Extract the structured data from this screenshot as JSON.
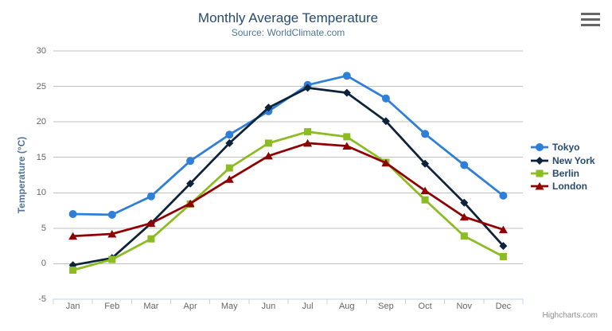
{
  "chart": {
    "title": "Monthly Average Temperature",
    "subtitle": "Source: WorldClimate.com",
    "y_axis_title": "Temperature (°C)",
    "credits": "Highcharts.com",
    "menu_icon": "hamburger-icon"
  },
  "chart_data": {
    "type": "line",
    "title": "Monthly Average Temperature",
    "subtitle": "Source: WorldClimate.com",
    "xlabel": "",
    "ylabel": "Temperature (°C)",
    "categories": [
      "Jan",
      "Feb",
      "Mar",
      "Apr",
      "May",
      "Jun",
      "Jul",
      "Aug",
      "Sep",
      "Oct",
      "Nov",
      "Dec"
    ],
    "ylim": [
      -5,
      30
    ],
    "y_ticks": [
      30,
      25,
      20,
      15,
      10,
      5,
      0,
      -5
    ],
    "grid": true,
    "legend_position": "right",
    "colors": {
      "grid": "#C0C0C0",
      "axis_line": "#C0D0E0",
      "title_text": "#274b6d",
      "subtitle_text": "#4d759e",
      "axis_label_text": "#666666",
      "credits_text": "#909090"
    },
    "series": [
      {
        "name": "Tokyo",
        "color": "#2f7ed8",
        "marker": "circle",
        "values": [
          7.0,
          6.9,
          9.5,
          14.5,
          18.2,
          21.5,
          25.2,
          26.5,
          23.3,
          18.3,
          13.9,
          9.6
        ]
      },
      {
        "name": "New York",
        "color": "#0d233a",
        "marker": "diamond",
        "values": [
          -0.2,
          0.8,
          5.7,
          11.3,
          17.0,
          22.0,
          24.8,
          24.1,
          20.1,
          14.1,
          8.6,
          2.5
        ]
      },
      {
        "name": "Berlin",
        "color": "#8bbc21",
        "marker": "square",
        "values": [
          -0.9,
          0.6,
          3.5,
          8.4,
          13.5,
          17.0,
          18.6,
          17.9,
          14.3,
          9.0,
          3.9,
          1.0
        ]
      },
      {
        "name": "London",
        "color": "#910000",
        "marker": "triangle",
        "values": [
          3.9,
          4.2,
          5.7,
          8.5,
          11.9,
          15.2,
          17.0,
          16.6,
          14.2,
          10.3,
          6.6,
          4.8
        ]
      }
    ]
  }
}
